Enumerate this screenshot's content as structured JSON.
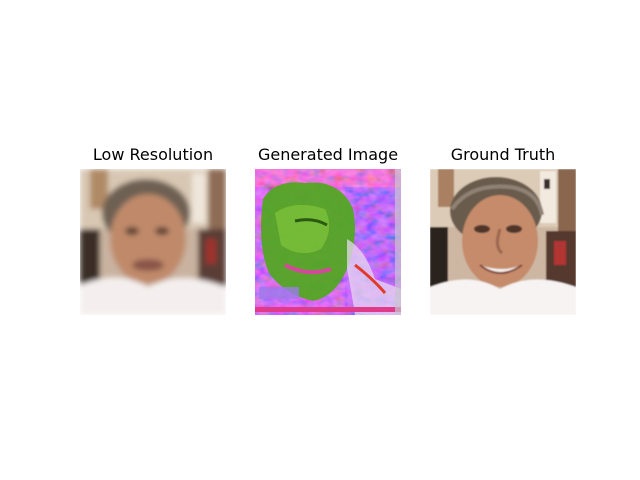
{
  "panels": [
    {
      "title": "Low Resolution",
      "image": "blurry-face-portrait"
    },
    {
      "title": "Generated Image",
      "image": "noisy-green-magenta-face"
    },
    {
      "title": "Ground Truth",
      "image": "sharp-face-portrait"
    }
  ]
}
